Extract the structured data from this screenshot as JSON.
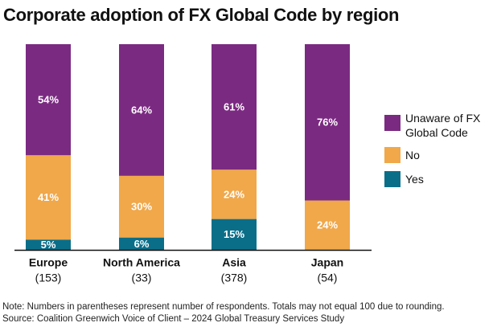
{
  "chart_data": {
    "type": "stacked_bar",
    "title": "Corporate adoption of FX Global Code by region",
    "categories": [
      "Europe",
      "North America",
      "Asia",
      "Japan"
    ],
    "respondents": [
      "(153)",
      "(33)",
      "(378)",
      "(54)"
    ],
    "series": [
      {
        "name": "Yes",
        "color": "#0b6e88",
        "values": [
          5,
          6,
          15,
          0
        ],
        "value_labels": [
          "5%",
          "6%",
          "15%",
          null
        ]
      },
      {
        "name": "No",
        "color": "#f0a84a",
        "values": [
          41,
          30,
          24,
          24
        ],
        "value_labels": [
          "41%",
          "30%",
          "24%",
          "24%"
        ]
      },
      {
        "name": "Unaware of FX Global Code",
        "color": "#7b2a82",
        "values": [
          54,
          64,
          61,
          76
        ],
        "value_labels": [
          "54%",
          "64%",
          "61%",
          "76%"
        ]
      }
    ],
    "notes": [
      "Note: Numbers in parentheses represent number of respondents. Totals may not equal 100 due to rounding.",
      "Source: Coalition Greenwich Voice of Client – 2024 Global Treasury Services Study"
    ]
  }
}
